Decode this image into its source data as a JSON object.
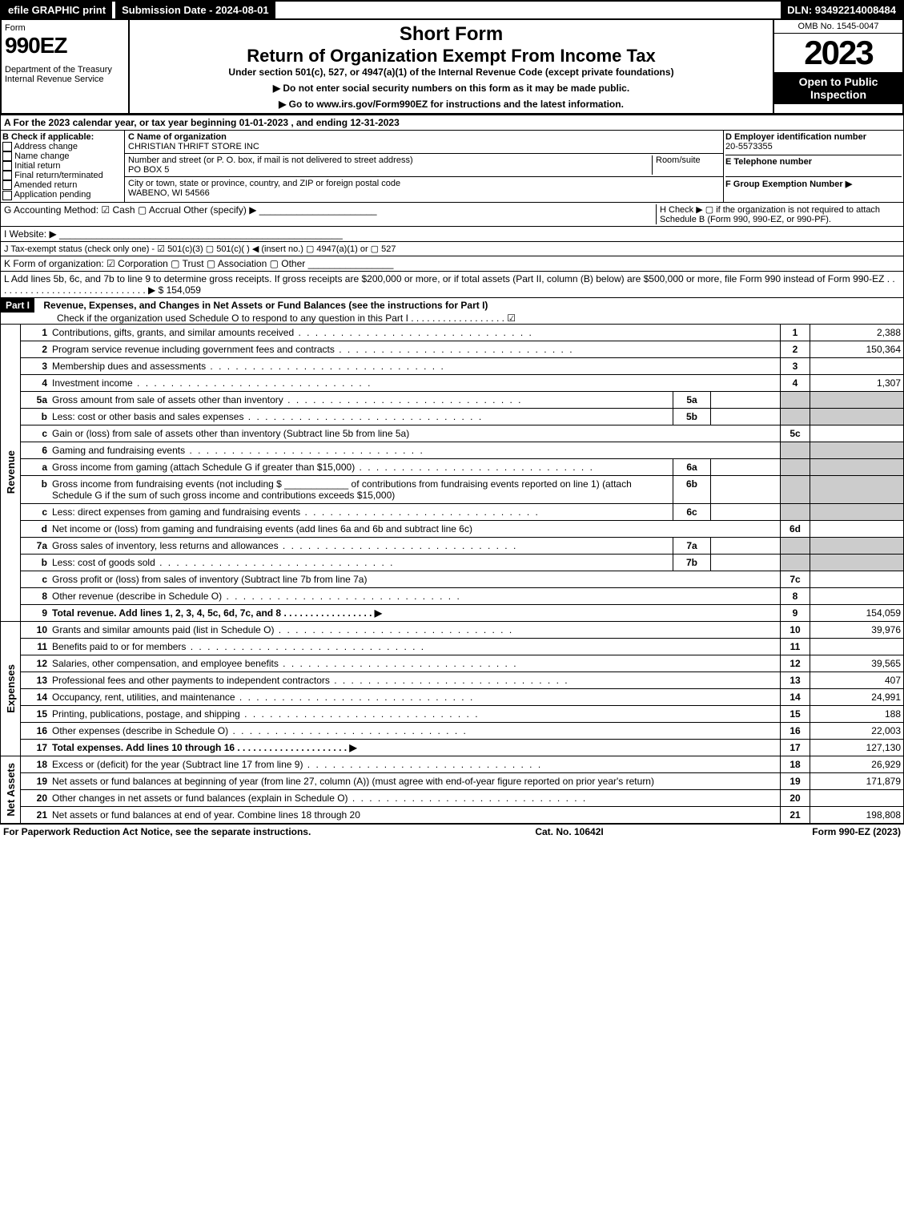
{
  "topbar": {
    "efile": "efile GRAPHIC print",
    "submission": "Submission Date - 2024-08-01",
    "dln": "DLN: 93492214008484"
  },
  "header": {
    "form_word": "Form",
    "form_number": "990EZ",
    "dept": "Department of the Treasury\nInternal Revenue Service",
    "short": "Short Form",
    "title": "Return of Organization Exempt From Income Tax",
    "subtitle": "Under section 501(c), 527, or 4947(a)(1) of the Internal Revenue Code (except private foundations)",
    "note1": "▶ Do not enter social security numbers on this form as it may be made public.",
    "note2": "▶ Go to www.irs.gov/Form990EZ for instructions and the latest information.",
    "omb": "OMB No. 1545-0047",
    "year": "2023",
    "inspect": "Open to Public Inspection"
  },
  "section_a": "A  For the 2023 calendar year, or tax year beginning 01-01-2023 , and ending 12-31-2023",
  "col_b": {
    "label": "B  Check if applicable:",
    "opts": [
      "Address change",
      "Name change",
      "Initial return",
      "Final return/terminated",
      "Amended return",
      "Application pending"
    ]
  },
  "col_c": {
    "name_label": "C Name of organization",
    "name": "CHRISTIAN THRIFT STORE INC",
    "addr_label": "Number and street (or P. O. box, if mail is not delivered to street address)",
    "room": "Room/suite",
    "addr": "PO BOX 5",
    "city_label": "City or town, state or province, country, and ZIP or foreign postal code",
    "city": "WABENO, WI  54566"
  },
  "col_d": {
    "ein_label": "D Employer identification number",
    "ein": "20-5573355",
    "phone_label": "E Telephone number",
    "group_label": "F Group Exemption Number  ▶"
  },
  "line_g": "G Accounting Method:   ☑ Cash   ▢ Accrual   Other (specify) ▶ ______________________",
  "line_h": "H  Check ▶  ▢  if the organization is not required to attach Schedule B (Form 990, 990-EZ, or 990-PF).",
  "line_i": "I Website: ▶ _____________________________________________________",
  "line_j": "J Tax-exempt status (check only one) - ☑ 501(c)(3) ▢ 501(c)(  ) ◀ (insert no.) ▢ 4947(a)(1) or ▢ 527",
  "line_k": "K Form of organization:   ☑ Corporation   ▢ Trust   ▢ Association   ▢ Other  ________________",
  "line_l": "L Add lines 5b, 6c, and 7b to line 9 to determine gross receipts. If gross receipts are $200,000 or more, or if total assets (Part II, column (B) below) are $500,000 or more, file Form 990 instead of Form 990-EZ  .  .  .  .  .  .  .  .  .  .  .  .  .  .  .  .  .  .  .  .  .  .  .  .  .  .  .  .  . ▶ $ 154,059",
  "part1": {
    "label": "Part I",
    "title": "Revenue, Expenses, and Changes in Net Assets or Fund Balances (see the instructions for Part I)",
    "check": "Check if the organization used Schedule O to respond to any question in this Part I .  .  .  .  .  .  .  .  .  .  .  .  .  .  .  .  .  .   ☑"
  },
  "side_labels": {
    "revenue": "Revenue",
    "expenses": "Expenses",
    "netassets": "Net Assets"
  },
  "rows": [
    {
      "n": "1",
      "d": "Contributions, gifts, grants, and similar amounts received",
      "ln": "1",
      "amt": "2,388"
    },
    {
      "n": "2",
      "d": "Program service revenue including government fees and contracts",
      "ln": "2",
      "amt": "150,364"
    },
    {
      "n": "3",
      "d": "Membership dues and assessments",
      "ln": "3",
      "amt": ""
    },
    {
      "n": "4",
      "d": "Investment income",
      "ln": "4",
      "amt": "1,307"
    },
    {
      "n": "5a",
      "d": "Gross amount from sale of assets other than inventory",
      "sub": "5a",
      "subv": ""
    },
    {
      "n": "b",
      "d": "Less: cost or other basis and sales expenses",
      "sub": "5b",
      "subv": ""
    },
    {
      "n": "c",
      "d": "Gain or (loss) from sale of assets other than inventory (Subtract line 5b from line 5a)",
      "ln": "5c",
      "amt": ""
    },
    {
      "n": "6",
      "d": "Gaming and fundraising events"
    },
    {
      "n": "a",
      "d": "Gross income from gaming (attach Schedule G if greater than $15,000)",
      "sub": "6a",
      "subv": ""
    },
    {
      "n": "b",
      "d": "Gross income from fundraising events (not including $ ____________ of contributions from fundraising events reported on line 1) (attach Schedule G if the sum of such gross income and contributions exceeds $15,000)",
      "sub": "6b",
      "subv": ""
    },
    {
      "n": "c",
      "d": "Less: direct expenses from gaming and fundraising events",
      "sub": "6c",
      "subv": ""
    },
    {
      "n": "d",
      "d": "Net income or (loss) from gaming and fundraising events (add lines 6a and 6b and subtract line 6c)",
      "ln": "6d",
      "amt": ""
    },
    {
      "n": "7a",
      "d": "Gross sales of inventory, less returns and allowances",
      "sub": "7a",
      "subv": ""
    },
    {
      "n": "b",
      "d": "Less: cost of goods sold",
      "sub": "7b",
      "subv": ""
    },
    {
      "n": "c",
      "d": "Gross profit or (loss) from sales of inventory (Subtract line 7b from line 7a)",
      "ln": "7c",
      "amt": ""
    },
    {
      "n": "8",
      "d": "Other revenue (describe in Schedule O)",
      "ln": "8",
      "amt": ""
    },
    {
      "n": "9",
      "d": "Total revenue. Add lines 1, 2, 3, 4, 5c, 6d, 7c, and 8   .  .  .  .  .  .  .  .  .  .  .  .  .  .  .  .  . ▶",
      "ln": "9",
      "amt": "154,059",
      "bold": true
    }
  ],
  "exp_rows": [
    {
      "n": "10",
      "d": "Grants and similar amounts paid (list in Schedule O)",
      "ln": "10",
      "amt": "39,976"
    },
    {
      "n": "11",
      "d": "Benefits paid to or for members",
      "ln": "11",
      "amt": ""
    },
    {
      "n": "12",
      "d": "Salaries, other compensation, and employee benefits",
      "ln": "12",
      "amt": "39,565"
    },
    {
      "n": "13",
      "d": "Professional fees and other payments to independent contractors",
      "ln": "13",
      "amt": "407"
    },
    {
      "n": "14",
      "d": "Occupancy, rent, utilities, and maintenance",
      "ln": "14",
      "amt": "24,991"
    },
    {
      "n": "15",
      "d": "Printing, publications, postage, and shipping",
      "ln": "15",
      "amt": "188"
    },
    {
      "n": "16",
      "d": "Other expenses (describe in Schedule O)",
      "ln": "16",
      "amt": "22,003"
    },
    {
      "n": "17",
      "d": "Total expenses. Add lines 10 through 16   .  .  .  .  .  .  .  .  .  .  .  .  .  .  .  .  .  .  .  .  . ▶",
      "ln": "17",
      "amt": "127,130",
      "bold": true
    }
  ],
  "na_rows": [
    {
      "n": "18",
      "d": "Excess or (deficit) for the year (Subtract line 17 from line 9)",
      "ln": "18",
      "amt": "26,929"
    },
    {
      "n": "19",
      "d": "Net assets or fund balances at beginning of year (from line 27, column (A)) (must agree with end-of-year figure reported on prior year's return)",
      "ln": "19",
      "amt": "171,879"
    },
    {
      "n": "20",
      "d": "Other changes in net assets or fund balances (explain in Schedule O)",
      "ln": "20",
      "amt": ""
    },
    {
      "n": "21",
      "d": "Net assets or fund balances at end of year. Combine lines 18 through 20",
      "ln": "21",
      "amt": "198,808"
    }
  ],
  "footer": {
    "left": "For Paperwork Reduction Act Notice, see the separate instructions.",
    "mid": "Cat. No. 10642I",
    "right": "Form 990-EZ (2023)"
  }
}
